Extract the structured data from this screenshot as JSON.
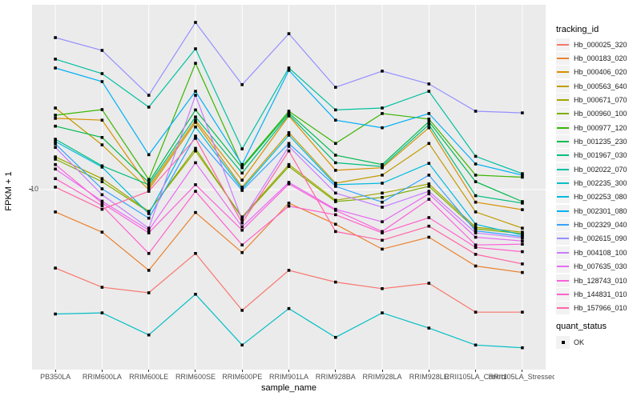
{
  "colors": {
    "panel_bg": "#EBEBEB",
    "grid": "#FFFFFF",
    "axis_text": "#4D4D4D",
    "axis_title": "#000000",
    "point": "#000000",
    "legend_key_bg": "#F2F2F2"
  },
  "legend": {
    "tracking_title": "tracking_id",
    "quant_title": "quant_status",
    "quant_items": [
      {
        "label": "OK",
        "marker": "black-square"
      }
    ]
  },
  "chart_data": {
    "type": "line",
    "title": "",
    "xlabel": "sample_name",
    "ylabel": "FPKM + 1",
    "y_scale": "log10",
    "ylim": [
      1.4,
      80
    ],
    "y_breaks": [
      10
    ],
    "y_tick_labels": [
      "10"
    ],
    "grid": "major",
    "legend_position": "right",
    "point_shape": "square",
    "categories": [
      "PB350LA",
      "RRIM600LA",
      "RRIM600LE",
      "RRIM600SE",
      "RRIM600PE",
      "RRIM901LA",
      "RRIM928BA",
      "RRIM928LA",
      "RRIM928LE",
      "RRII105LA_Control",
      "RRII105LA_Stressed"
    ],
    "series": [
      {
        "name": "Hb_000025_320",
        "color": "#F8766D",
        "values": [
          3.9,
          3.1,
          2.9,
          4.65,
          2.35,
          3.8,
          3.3,
          3.05,
          3.25,
          2.3,
          2.3
        ]
      },
      {
        "name": "Hb_000183_020",
        "color": "#EA8331",
        "values": [
          7.65,
          6.0,
          3.8,
          7.6,
          4.7,
          8.5,
          6.6,
          4.9,
          5.65,
          4.0,
          3.7
        ]
      },
      {
        "name": "Hb_000406_020",
        "color": "#D89000",
        "values": [
          23.5,
          23.0,
          10.3,
          23.0,
          11.2,
          24.2,
          12.6,
          13.0,
          21.0,
          8.6,
          7.86
        ]
      },
      {
        "name": "Hb_000563_640",
        "color": "#C09B00",
        "values": [
          26.6,
          17.1,
          10.0,
          22.4,
          10.3,
          19.8,
          10.8,
          11.9,
          17.4,
          7.65,
          6.3
        ]
      },
      {
        "name": "Hb_000671_070",
        "color": "#A3A500",
        "values": [
          14.8,
          11.4,
          7.7,
          15.9,
          7.2,
          13.5,
          8.8,
          9.6,
          10.7,
          6.37,
          6.0
        ]
      },
      {
        "name": "Hb_000960_100",
        "color": "#7CAE00",
        "values": [
          14.4,
          11.0,
          7.65,
          16.4,
          7.1,
          13.2,
          8.66,
          9.1,
          10.4,
          6.25,
          5.9
        ]
      },
      {
        "name": "Hb_000977_120",
        "color": "#39B600",
        "values": [
          24.4,
          26.1,
          11.3,
          45.5,
          13.2,
          25.6,
          17.4,
          24.9,
          23.3,
          11.9,
          11.6
        ]
      },
      {
        "name": "Hb_001235_230",
        "color": "#00BB4E",
        "values": [
          21.4,
          18.7,
          10.9,
          26.0,
          13.0,
          25.1,
          15.1,
          13.5,
          22.6,
          11.0,
          8.66
        ]
      },
      {
        "name": "Hb_001967_030",
        "color": "#00BF7D",
        "values": [
          18.3,
          13.3,
          10.6,
          23.9,
          12.2,
          24.6,
          13.8,
          13.2,
          21.8,
          9.3,
          8.5
        ]
      },
      {
        "name": "Hb_002022_070",
        "color": "#00C1A3",
        "values": [
          47.8,
          40.2,
          26.9,
          54.1,
          16.3,
          43.0,
          26.0,
          26.6,
          32.5,
          14.9,
          12.1
        ]
      },
      {
        "name": "Hb_002235_300",
        "color": "#00BFC4",
        "values": [
          2.25,
          2.28,
          1.75,
          2.85,
          1.55,
          2.4,
          1.7,
          2.28,
          1.9,
          1.55,
          1.5
        ]
      },
      {
        "name": "Hb_002253_080",
        "color": "#00BAE0",
        "values": [
          17.8,
          13.1,
          7.5,
          21.2,
          10.1,
          19.2,
          10.6,
          10.8,
          13.7,
          6.6,
          5.8
        ]
      },
      {
        "name": "Hb_002301_080",
        "color": "#00B0F6",
        "values": [
          43.0,
          36.5,
          15.2,
          32.5,
          13.5,
          41.8,
          23.0,
          21.0,
          24.9,
          13.6,
          11.9
        ]
      },
      {
        "name": "Hb_002329_040",
        "color": "#35A2FF",
        "values": [
          17.3,
          10.1,
          7.1,
          19.0,
          9.9,
          17.4,
          10.4,
          8.6,
          11.9,
          6.1,
          5.7
        ]
      },
      {
        "name": "Hb_002615_090",
        "color": "#9590FF",
        "values": [
          61.9,
          53.1,
          31.0,
          74.3,
          35.2,
          64.9,
          34.1,
          41.4,
          35.5,
          25.6,
          25.1
        ]
      },
      {
        "name": "Hb_004108_100",
        "color": "#C77CFF",
        "values": [
          16.6,
          9.4,
          6.3,
          31.0,
          6.95,
          16.8,
          9.6,
          8.1,
          9.8,
          5.95,
          5.6
        ]
      },
      {
        "name": "Hb_007635_030",
        "color": "#E76BF3",
        "values": [
          12.8,
          8.7,
          6.15,
          13.8,
          6.4,
          10.9,
          7.9,
          6.8,
          9.5,
          5.65,
          5.4
        ]
      },
      {
        "name": "Hb_128743_010",
        "color": "#FA62DB",
        "values": [
          13.5,
          8.5,
          5.95,
          10.6,
          6.15,
          10.7,
          7.8,
          6.05,
          8.9,
          5.15,
          5.2
        ]
      },
      {
        "name": "Hb_144831_010",
        "color": "#FF61CC",
        "values": [
          11.4,
          8.25,
          4.65,
          9.8,
          5.15,
          8.2,
          7.4,
          5.95,
          7.15,
          5.0,
          4.75
        ]
      },
      {
        "name": "Hb_157966_010",
        "color": "#FF67A4",
        "values": [
          10.3,
          7.9,
          9.8,
          18.5,
          6.7,
          15.9,
          6.05,
          5.45,
          6.45,
          4.6,
          4.1
        ]
      }
    ]
  }
}
